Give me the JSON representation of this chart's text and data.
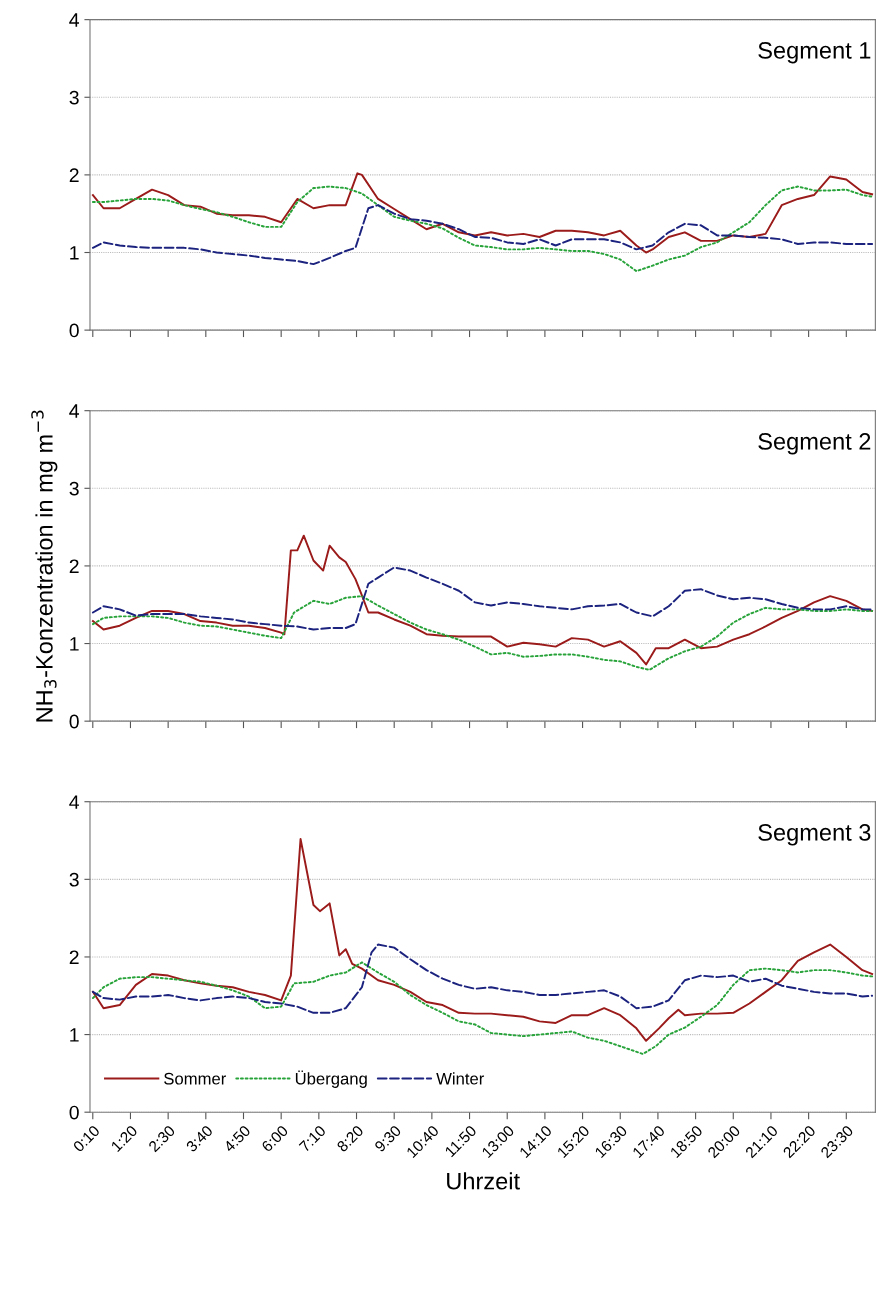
{
  "chart_data": [
    {
      "type": "line",
      "title": "Segment 1",
      "xlim": [
        0.08,
        24.4
      ],
      "ylim": [
        0,
        4
      ],
      "yticks": [
        0,
        1,
        2,
        3,
        4
      ],
      "grid": "y",
      "marker": "none",
      "tick_labels": "y",
      "xticks": [
        {
          "value": 0.1667,
          "label": null
        },
        {
          "value": 1.3333,
          "label": null
        },
        {
          "value": 2.5,
          "label": null
        },
        {
          "value": 3.6667,
          "label": null
        },
        {
          "value": 4.8333,
          "label": null
        },
        {
          "value": 6,
          "label": null
        },
        {
          "value": 7.1667,
          "label": null
        },
        {
          "value": 8.3333,
          "label": null
        },
        {
          "value": 9.5,
          "label": null
        },
        {
          "value": 10.6667,
          "label": null
        },
        {
          "value": 11.8333,
          "label": null
        },
        {
          "value": 13,
          "label": null
        },
        {
          "value": 14.1667,
          "label": null
        },
        {
          "value": 15.3333,
          "label": null
        },
        {
          "value": 16.5,
          "label": null
        },
        {
          "value": 17.6667,
          "label": null
        },
        {
          "value": 18.8333,
          "label": null
        },
        {
          "value": 20,
          "label": null
        },
        {
          "value": 21.1667,
          "label": null
        },
        {
          "value": 22.3333,
          "label": null
        },
        {
          "value": 23.5,
          "label": null
        }
      ],
      "series": [
        {
          "color": "#9b1b1b",
          "line_style": "solid",
          "x": [
            0.17,
            0.5,
            1,
            1.5,
            2,
            2.5,
            3,
            3.5,
            4,
            4.5,
            5,
            5.5,
            6,
            6.5,
            7,
            7.5,
            8,
            8.36,
            8.5,
            9,
            9.5,
            10,
            10.5,
            11,
            11.5,
            12,
            12.5,
            13,
            13.5,
            14,
            14.5,
            15,
            15.5,
            16,
            16.5,
            17,
            17.3,
            17.5,
            18,
            18.5,
            19,
            19.5,
            20,
            20.5,
            21,
            21.5,
            22,
            22.5,
            23,
            23.5,
            24,
            24.3
          ],
          "values": [
            1.74,
            1.57,
            1.57,
            1.69,
            1.81,
            1.74,
            1.61,
            1.59,
            1.5,
            1.48,
            1.48,
            1.46,
            1.39,
            1.69,
            1.57,
            1.61,
            1.61,
            2.02,
            2.0,
            1.69,
            1.56,
            1.43,
            1.3,
            1.37,
            1.26,
            1.22,
            1.26,
            1.22,
            1.24,
            1.2,
            1.28,
            1.28,
            1.26,
            1.22,
            1.28,
            1.09,
            1.0,
            1.04,
            1.2,
            1.26,
            1.15,
            1.15,
            1.22,
            1.2,
            1.24,
            1.61,
            1.69,
            1.74,
            1.98,
            1.94,
            1.78,
            1.75
          ]
        },
        {
          "color": "#27a33a",
          "line_style": "dotted",
          "x": [
            0.17,
            0.5,
            1,
            1.5,
            2,
            2.5,
            3,
            3.5,
            4,
            4.5,
            5,
            5.5,
            6,
            6.5,
            7,
            7.5,
            8,
            8.5,
            9,
            9.5,
            10,
            10.5,
            11,
            11.5,
            12,
            12.5,
            13,
            13.5,
            14,
            14.5,
            15,
            15.5,
            16,
            16.5,
            17,
            17.5,
            18,
            18.5,
            19,
            19.5,
            20,
            20.5,
            21,
            21.5,
            22,
            22.5,
            23,
            23.5,
            24,
            24.3
          ],
          "values": [
            1.65,
            1.65,
            1.67,
            1.69,
            1.69,
            1.67,
            1.61,
            1.56,
            1.52,
            1.46,
            1.39,
            1.33,
            1.33,
            1.65,
            1.83,
            1.85,
            1.83,
            1.76,
            1.61,
            1.46,
            1.41,
            1.37,
            1.31,
            1.19,
            1.09,
            1.07,
            1.04,
            1.04,
            1.06,
            1.04,
            1.02,
            1.02,
            0.98,
            0.91,
            0.76,
            0.83,
            0.91,
            0.96,
            1.07,
            1.13,
            1.26,
            1.39,
            1.61,
            1.8,
            1.85,
            1.8,
            1.8,
            1.81,
            1.74,
            1.72
          ]
        },
        {
          "color": "#1c237f",
          "line_style": "dashed",
          "x": [
            0.17,
            0.5,
            1,
            1.5,
            2,
            2.5,
            3,
            3.5,
            4,
            4.5,
            5,
            5.5,
            6,
            6.5,
            7,
            7.5,
            8,
            8.3,
            8.7,
            9,
            9.5,
            10,
            10.5,
            11,
            11.5,
            12,
            12.5,
            13,
            13.5,
            14,
            14.5,
            15,
            15.5,
            16,
            16.5,
            17,
            17.5,
            18,
            18.5,
            19,
            19.5,
            20,
            20.5,
            21,
            21.5,
            22,
            22.5,
            23,
            23.5,
            24,
            24.3
          ],
          "values": [
            1.06,
            1.13,
            1.09,
            1.07,
            1.06,
            1.06,
            1.06,
            1.04,
            1.0,
            0.98,
            0.96,
            0.93,
            0.91,
            0.89,
            0.85,
            0.93,
            1.02,
            1.06,
            1.57,
            1.61,
            1.5,
            1.43,
            1.41,
            1.37,
            1.3,
            1.2,
            1.19,
            1.13,
            1.11,
            1.17,
            1.09,
            1.17,
            1.17,
            1.17,
            1.13,
            1.04,
            1.09,
            1.26,
            1.37,
            1.35,
            1.22,
            1.22,
            1.2,
            1.19,
            1.17,
            1.11,
            1.13,
            1.13,
            1.11,
            1.11,
            1.11
          ]
        }
      ]
    },
    {
      "type": "line",
      "title": "Segment 2",
      "ylabel": "NH$_{3}$-Konzentration in mg m$^{−3}$",
      "xlim": [
        0.08,
        24.4
      ],
      "ylim": [
        0,
        4
      ],
      "yticks": [
        0,
        1,
        2,
        3,
        4
      ],
      "grid": "y",
      "marker": "none",
      "tick_labels": "y",
      "xticks": [
        {
          "value": 0.1667,
          "label": null
        },
        {
          "value": 1.3333,
          "label": null
        },
        {
          "value": 2.5,
          "label": null
        },
        {
          "value": 3.6667,
          "label": null
        },
        {
          "value": 4.8333,
          "label": null
        },
        {
          "value": 6,
          "label": null
        },
        {
          "value": 7.1667,
          "label": null
        },
        {
          "value": 8.3333,
          "label": null
        },
        {
          "value": 9.5,
          "label": null
        },
        {
          "value": 10.6667,
          "label": null
        },
        {
          "value": 11.8333,
          "label": null
        },
        {
          "value": 13,
          "label": null
        },
        {
          "value": 14.1667,
          "label": null
        },
        {
          "value": 15.3333,
          "label": null
        },
        {
          "value": 16.5,
          "label": null
        },
        {
          "value": 17.6667,
          "label": null
        },
        {
          "value": 18.8333,
          "label": null
        },
        {
          "value": 20,
          "label": null
        },
        {
          "value": 21.1667,
          "label": null
        },
        {
          "value": 22.3333,
          "label": null
        },
        {
          "value": 23.5,
          "label": null
        }
      ],
      "series": [
        {
          "color": "#9b1b1b",
          "line_style": "solid",
          "x": [
            0.17,
            0.5,
            1,
            1.5,
            2,
            2.5,
            3,
            3.5,
            4,
            4.5,
            5,
            5.5,
            6,
            6.1,
            6.3,
            6.5,
            6.7,
            7,
            7.3,
            7.5,
            7.8,
            8,
            8.3,
            8.5,
            8.7,
            9,
            9.5,
            10,
            10.5,
            11,
            11.5,
            12,
            12.5,
            13,
            13.5,
            14,
            14.5,
            15,
            15.5,
            16,
            16.5,
            17,
            17.3,
            17.6,
            18,
            18.5,
            19,
            19.5,
            20,
            20.5,
            21,
            21.5,
            22,
            22.5,
            23,
            23.5,
            24,
            24.3
          ],
          "values": [
            1.29,
            1.18,
            1.23,
            1.33,
            1.42,
            1.42,
            1.38,
            1.29,
            1.27,
            1.23,
            1.23,
            1.2,
            1.14,
            1.12,
            2.2,
            2.2,
            2.39,
            2.07,
            1.94,
            2.26,
            2.11,
            2.05,
            1.83,
            1.62,
            1.4,
            1.4,
            1.31,
            1.23,
            1.12,
            1.1,
            1.09,
            1.09,
            1.09,
            0.96,
            1.01,
            0.99,
            0.96,
            1.07,
            1.05,
            0.96,
            1.03,
            0.88,
            0.73,
            0.94,
            0.94,
            1.05,
            0.94,
            0.96,
            1.05,
            1.12,
            1.22,
            1.33,
            1.42,
            1.53,
            1.61,
            1.55,
            1.44,
            1.42
          ]
        },
        {
          "color": "#27a33a",
          "line_style": "dotted",
          "x": [
            0.17,
            0.5,
            1,
            1.5,
            2,
            2.5,
            3,
            3.5,
            4,
            4.5,
            5,
            5.5,
            6,
            6.4,
            7,
            7.5,
            8,
            8.5,
            9,
            9.5,
            10,
            10.5,
            11,
            11.5,
            12,
            12.5,
            13,
            13.5,
            14,
            14.5,
            15,
            15.5,
            16,
            16.5,
            17,
            17.4,
            18,
            18.5,
            19,
            19.5,
            20,
            20.5,
            21,
            21.5,
            22,
            22.5,
            23,
            23.5,
            24,
            24.3
          ],
          "values": [
            1.25,
            1.33,
            1.35,
            1.35,
            1.35,
            1.33,
            1.27,
            1.23,
            1.22,
            1.18,
            1.14,
            1.1,
            1.07,
            1.4,
            1.55,
            1.51,
            1.59,
            1.61,
            1.49,
            1.38,
            1.27,
            1.18,
            1.12,
            1.05,
            0.96,
            0.86,
            0.88,
            0.83,
            0.84,
            0.86,
            0.86,
            0.83,
            0.79,
            0.77,
            0.7,
            0.66,
            0.81,
            0.9,
            0.96,
            1.09,
            1.27,
            1.38,
            1.46,
            1.44,
            1.44,
            1.42,
            1.42,
            1.44,
            1.42,
            1.42
          ]
        },
        {
          "color": "#1c237f",
          "line_style": "dashed",
          "x": [
            0.17,
            0.5,
            1,
            1.5,
            2,
            2.5,
            3,
            3.5,
            4,
            4.5,
            5,
            5.5,
            6,
            6.5,
            7,
            7.5,
            8,
            8.3,
            8.7,
            9,
            9.5,
            10,
            10.5,
            11,
            11.5,
            12,
            12.5,
            13,
            13.5,
            14,
            14.5,
            15,
            15.5,
            16,
            16.5,
            17,
            17.5,
            18,
            18.5,
            19,
            19.5,
            20,
            20.5,
            21,
            21.5,
            22,
            22.5,
            23,
            23.5,
            24,
            24.3
          ],
          "values": [
            1.4,
            1.48,
            1.44,
            1.36,
            1.38,
            1.38,
            1.38,
            1.35,
            1.33,
            1.31,
            1.27,
            1.25,
            1.23,
            1.22,
            1.18,
            1.2,
            1.2,
            1.25,
            1.77,
            1.85,
            1.98,
            1.94,
            1.85,
            1.77,
            1.68,
            1.53,
            1.49,
            1.53,
            1.51,
            1.48,
            1.46,
            1.44,
            1.48,
            1.49,
            1.51,
            1.4,
            1.35,
            1.48,
            1.68,
            1.7,
            1.62,
            1.57,
            1.59,
            1.57,
            1.51,
            1.46,
            1.44,
            1.44,
            1.48,
            1.44,
            1.44
          ]
        }
      ]
    },
    {
      "type": "line",
      "title": "Segment 3",
      "xlabel": "Uhrzeit",
      "xlim": [
        0.08,
        24.4
      ],
      "ylim": [
        0,
        4
      ],
      "yticks": [
        0,
        1,
        2,
        3,
        4
      ],
      "grid": "y",
      "legend": "bottom left",
      "marker": "none",
      "xticks": [
        {
          "value": 0.1667,
          "label": "0:10"
        },
        {
          "value": 1.3333,
          "label": "1:20"
        },
        {
          "value": 2.5,
          "label": "2:30"
        },
        {
          "value": 3.6667,
          "label": "3:40"
        },
        {
          "value": 4.8333,
          "label": "4:50"
        },
        {
          "value": 6,
          "label": "6:00"
        },
        {
          "value": 7.1667,
          "label": "7:10"
        },
        {
          "value": 8.3333,
          "label": "8:20"
        },
        {
          "value": 9.5,
          "label": "9:30"
        },
        {
          "value": 10.6667,
          "label": "10:40"
        },
        {
          "value": 11.8333,
          "label": "11:50"
        },
        {
          "value": 13,
          "label": "13:00"
        },
        {
          "value": 14.1667,
          "label": "14:10"
        },
        {
          "value": 15.3333,
          "label": "15:20"
        },
        {
          "value": 16.5,
          "label": "16:30"
        },
        {
          "value": 17.6667,
          "label": "17:40"
        },
        {
          "value": 18.8333,
          "label": "18:50"
        },
        {
          "value": 20,
          "label": "20:00"
        },
        {
          "value": 21.1667,
          "label": "21:10"
        },
        {
          "value": 22.3333,
          "label": "22:20"
        },
        {
          "value": 23.5,
          "label": "23:30"
        }
      ],
      "series": [
        {
          "name": "Sommer",
          "color": "#9b1b1b",
          "line_style": "solid",
          "x": [
            0.17,
            0.5,
            1,
            1.5,
            2,
            2.5,
            3,
            3.5,
            4,
            4.5,
            5,
            5.5,
            6,
            6.3,
            6.6,
            7,
            7.2,
            7.5,
            7.8,
            8,
            8.2,
            8.5,
            9,
            9.5,
            10,
            10.5,
            11,
            11.5,
            12,
            12.5,
            13,
            13.5,
            14,
            14.5,
            15,
            15.5,
            16,
            16.5,
            17,
            17.3,
            17.7,
            18,
            18.3,
            18.5,
            19,
            19.5,
            20,
            20.5,
            21,
            21.5,
            22,
            22.5,
            23,
            23.5,
            24,
            24.3
          ],
          "values": [
            1.55,
            1.34,
            1.38,
            1.64,
            1.78,
            1.76,
            1.7,
            1.66,
            1.63,
            1.61,
            1.55,
            1.51,
            1.44,
            1.76,
            3.52,
            2.67,
            2.59,
            2.69,
            2.02,
            2.1,
            1.91,
            1.85,
            1.7,
            1.64,
            1.55,
            1.42,
            1.38,
            1.28,
            1.27,
            1.27,
            1.25,
            1.23,
            1.17,
            1.15,
            1.25,
            1.25,
            1.34,
            1.25,
            1.08,
            0.92,
            1.08,
            1.21,
            1.32,
            1.25,
            1.27,
            1.27,
            1.28,
            1.4,
            1.55,
            1.7,
            1.95,
            2.06,
            2.16,
            2.0,
            1.83,
            1.78
          ]
        },
        {
          "name": "Übergang",
          "color": "#27a33a",
          "line_style": "dotted",
          "x": [
            0.17,
            0.5,
            1,
            1.5,
            2,
            2.5,
            3,
            3.5,
            4,
            4.5,
            5,
            5.5,
            6,
            6.4,
            7,
            7.5,
            8,
            8.5,
            9,
            9.5,
            10,
            10.5,
            11,
            11.5,
            12,
            12.5,
            13,
            13.5,
            14,
            14.5,
            15,
            15.5,
            16,
            16.5,
            17.2,
            17.6,
            18,
            18.5,
            19,
            19.5,
            20,
            20.5,
            21,
            21.5,
            22,
            22.5,
            23,
            23.5,
            24,
            24.3
          ],
          "values": [
            1.47,
            1.61,
            1.72,
            1.74,
            1.74,
            1.72,
            1.7,
            1.68,
            1.63,
            1.57,
            1.49,
            1.34,
            1.36,
            1.66,
            1.68,
            1.76,
            1.8,
            1.93,
            1.8,
            1.68,
            1.51,
            1.38,
            1.28,
            1.17,
            1.13,
            1.02,
            1.0,
            0.98,
            1.0,
            1.02,
            1.04,
            0.96,
            0.92,
            0.85,
            0.75,
            0.85,
            1.0,
            1.09,
            1.23,
            1.38,
            1.64,
            1.83,
            1.85,
            1.83,
            1.8,
            1.83,
            1.83,
            1.8,
            1.76,
            1.75
          ]
        },
        {
          "name": "Winter",
          "color": "#1c237f",
          "line_style": "dashed",
          "x": [
            0.17,
            0.5,
            1,
            1.5,
            2,
            2.5,
            3,
            3.5,
            4,
            4.5,
            5,
            5.5,
            6,
            6.5,
            7,
            7.5,
            8,
            8.5,
            8.8,
            9,
            9.5,
            10,
            10.5,
            11,
            11.5,
            12,
            12.5,
            13,
            13.5,
            14,
            14.5,
            15,
            15.5,
            16,
            16.5,
            17,
            17.5,
            18,
            18.5,
            19,
            19.5,
            20,
            20.5,
            21,
            21.5,
            22,
            22.5,
            23,
            23.5,
            24,
            24.3
          ],
          "values": [
            1.55,
            1.47,
            1.45,
            1.49,
            1.49,
            1.51,
            1.47,
            1.44,
            1.47,
            1.49,
            1.47,
            1.42,
            1.4,
            1.36,
            1.28,
            1.28,
            1.34,
            1.61,
            2.06,
            2.16,
            2.12,
            1.97,
            1.83,
            1.72,
            1.64,
            1.59,
            1.61,
            1.57,
            1.55,
            1.51,
            1.51,
            1.53,
            1.55,
            1.57,
            1.49,
            1.34,
            1.36,
            1.44,
            1.7,
            1.76,
            1.74,
            1.76,
            1.68,
            1.72,
            1.63,
            1.59,
            1.55,
            1.53,
            1.53,
            1.49,
            1.5
          ]
        }
      ]
    }
  ]
}
